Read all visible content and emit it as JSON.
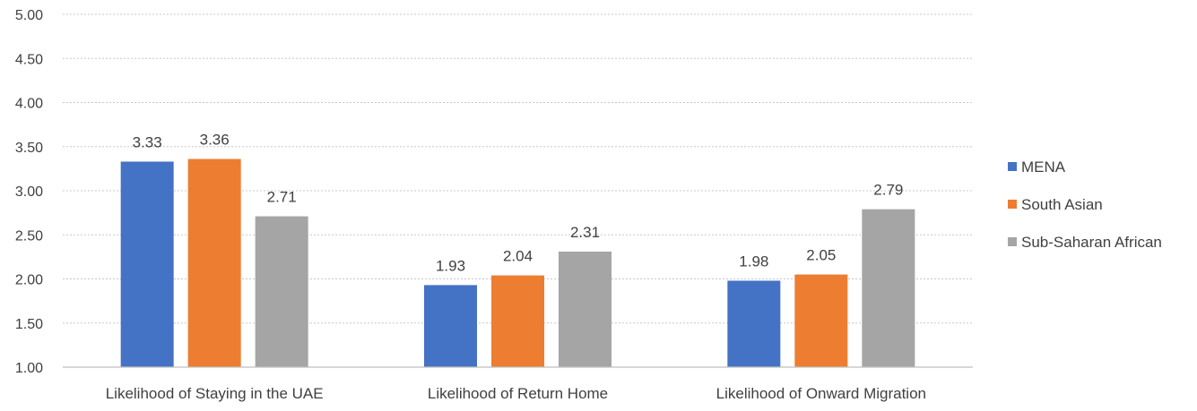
{
  "chart_data": {
    "type": "bar",
    "title": "",
    "xlabel": "",
    "ylabel": "",
    "ylim": [
      1.0,
      5.0
    ],
    "yticks": [
      "1.00",
      "1.50",
      "2.00",
      "2.50",
      "3.00",
      "3.50",
      "4.00",
      "4.50",
      "5.00"
    ],
    "grid": true,
    "legend_position": "right",
    "categories": [
      "Likelihood of Staying in the UAE",
      "Likelihood of Return Home",
      "Likelihood of Onward Migration"
    ],
    "series": [
      {
        "name": "MENA",
        "color": "#4472C4",
        "values": [
          3.33,
          1.93,
          1.98
        ],
        "labels": [
          "3.33",
          "1.93",
          "1.98"
        ]
      },
      {
        "name": "South Asian",
        "color": "#ED7D31",
        "values": [
          3.36,
          2.04,
          2.05
        ],
        "labels": [
          "3.36",
          "2.04",
          "2.05"
        ]
      },
      {
        "name": "Sub-Saharan African",
        "color": "#A5A5A5",
        "values": [
          2.71,
          2.31,
          2.79
        ],
        "labels": [
          "2.71",
          "2.31",
          "2.79"
        ]
      }
    ]
  }
}
